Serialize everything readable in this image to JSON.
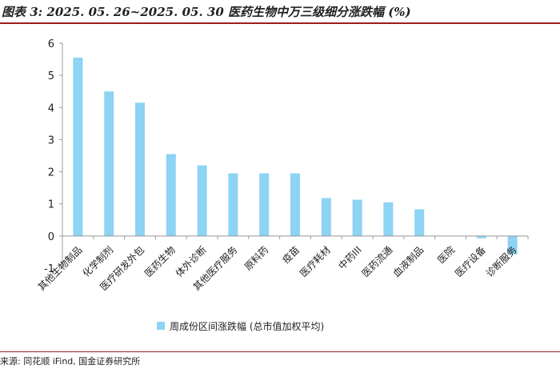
{
  "header": {
    "title": "图表 3: 2025. 05. 26~2025. 05. 30 医药生物中万三级细分涨跌幅 (%)"
  },
  "footer": {
    "source": "来源: 同花顺 iFind, 国金证券研究所"
  },
  "chart_data": {
    "type": "bar",
    "categories": [
      "其他生物制品",
      "化学制剂",
      "医疗研发外包",
      "医药生物",
      "体外诊断",
      "其他医疗服务",
      "原料药",
      "疫苗",
      "医疗耗材",
      "中药III",
      "医药流通",
      "血液制品",
      "医院",
      "医疗设备",
      "诊断服务"
    ],
    "series": [
      {
        "name": "周成份区间涨跌幅 (总市值加权平均)",
        "values": [
          5.55,
          4.5,
          4.15,
          2.55,
          2.2,
          1.95,
          1.95,
          1.95,
          1.18,
          1.13,
          1.05,
          0.83,
          0.0,
          -0.07,
          -0.57
        ],
        "color": "#8dd3f4"
      }
    ],
    "ylim": [
      -1,
      6
    ],
    "yticks": [
      -1,
      0,
      1,
      2,
      3,
      4,
      5,
      6
    ],
    "legend_position": "bottom",
    "grid": false
  }
}
